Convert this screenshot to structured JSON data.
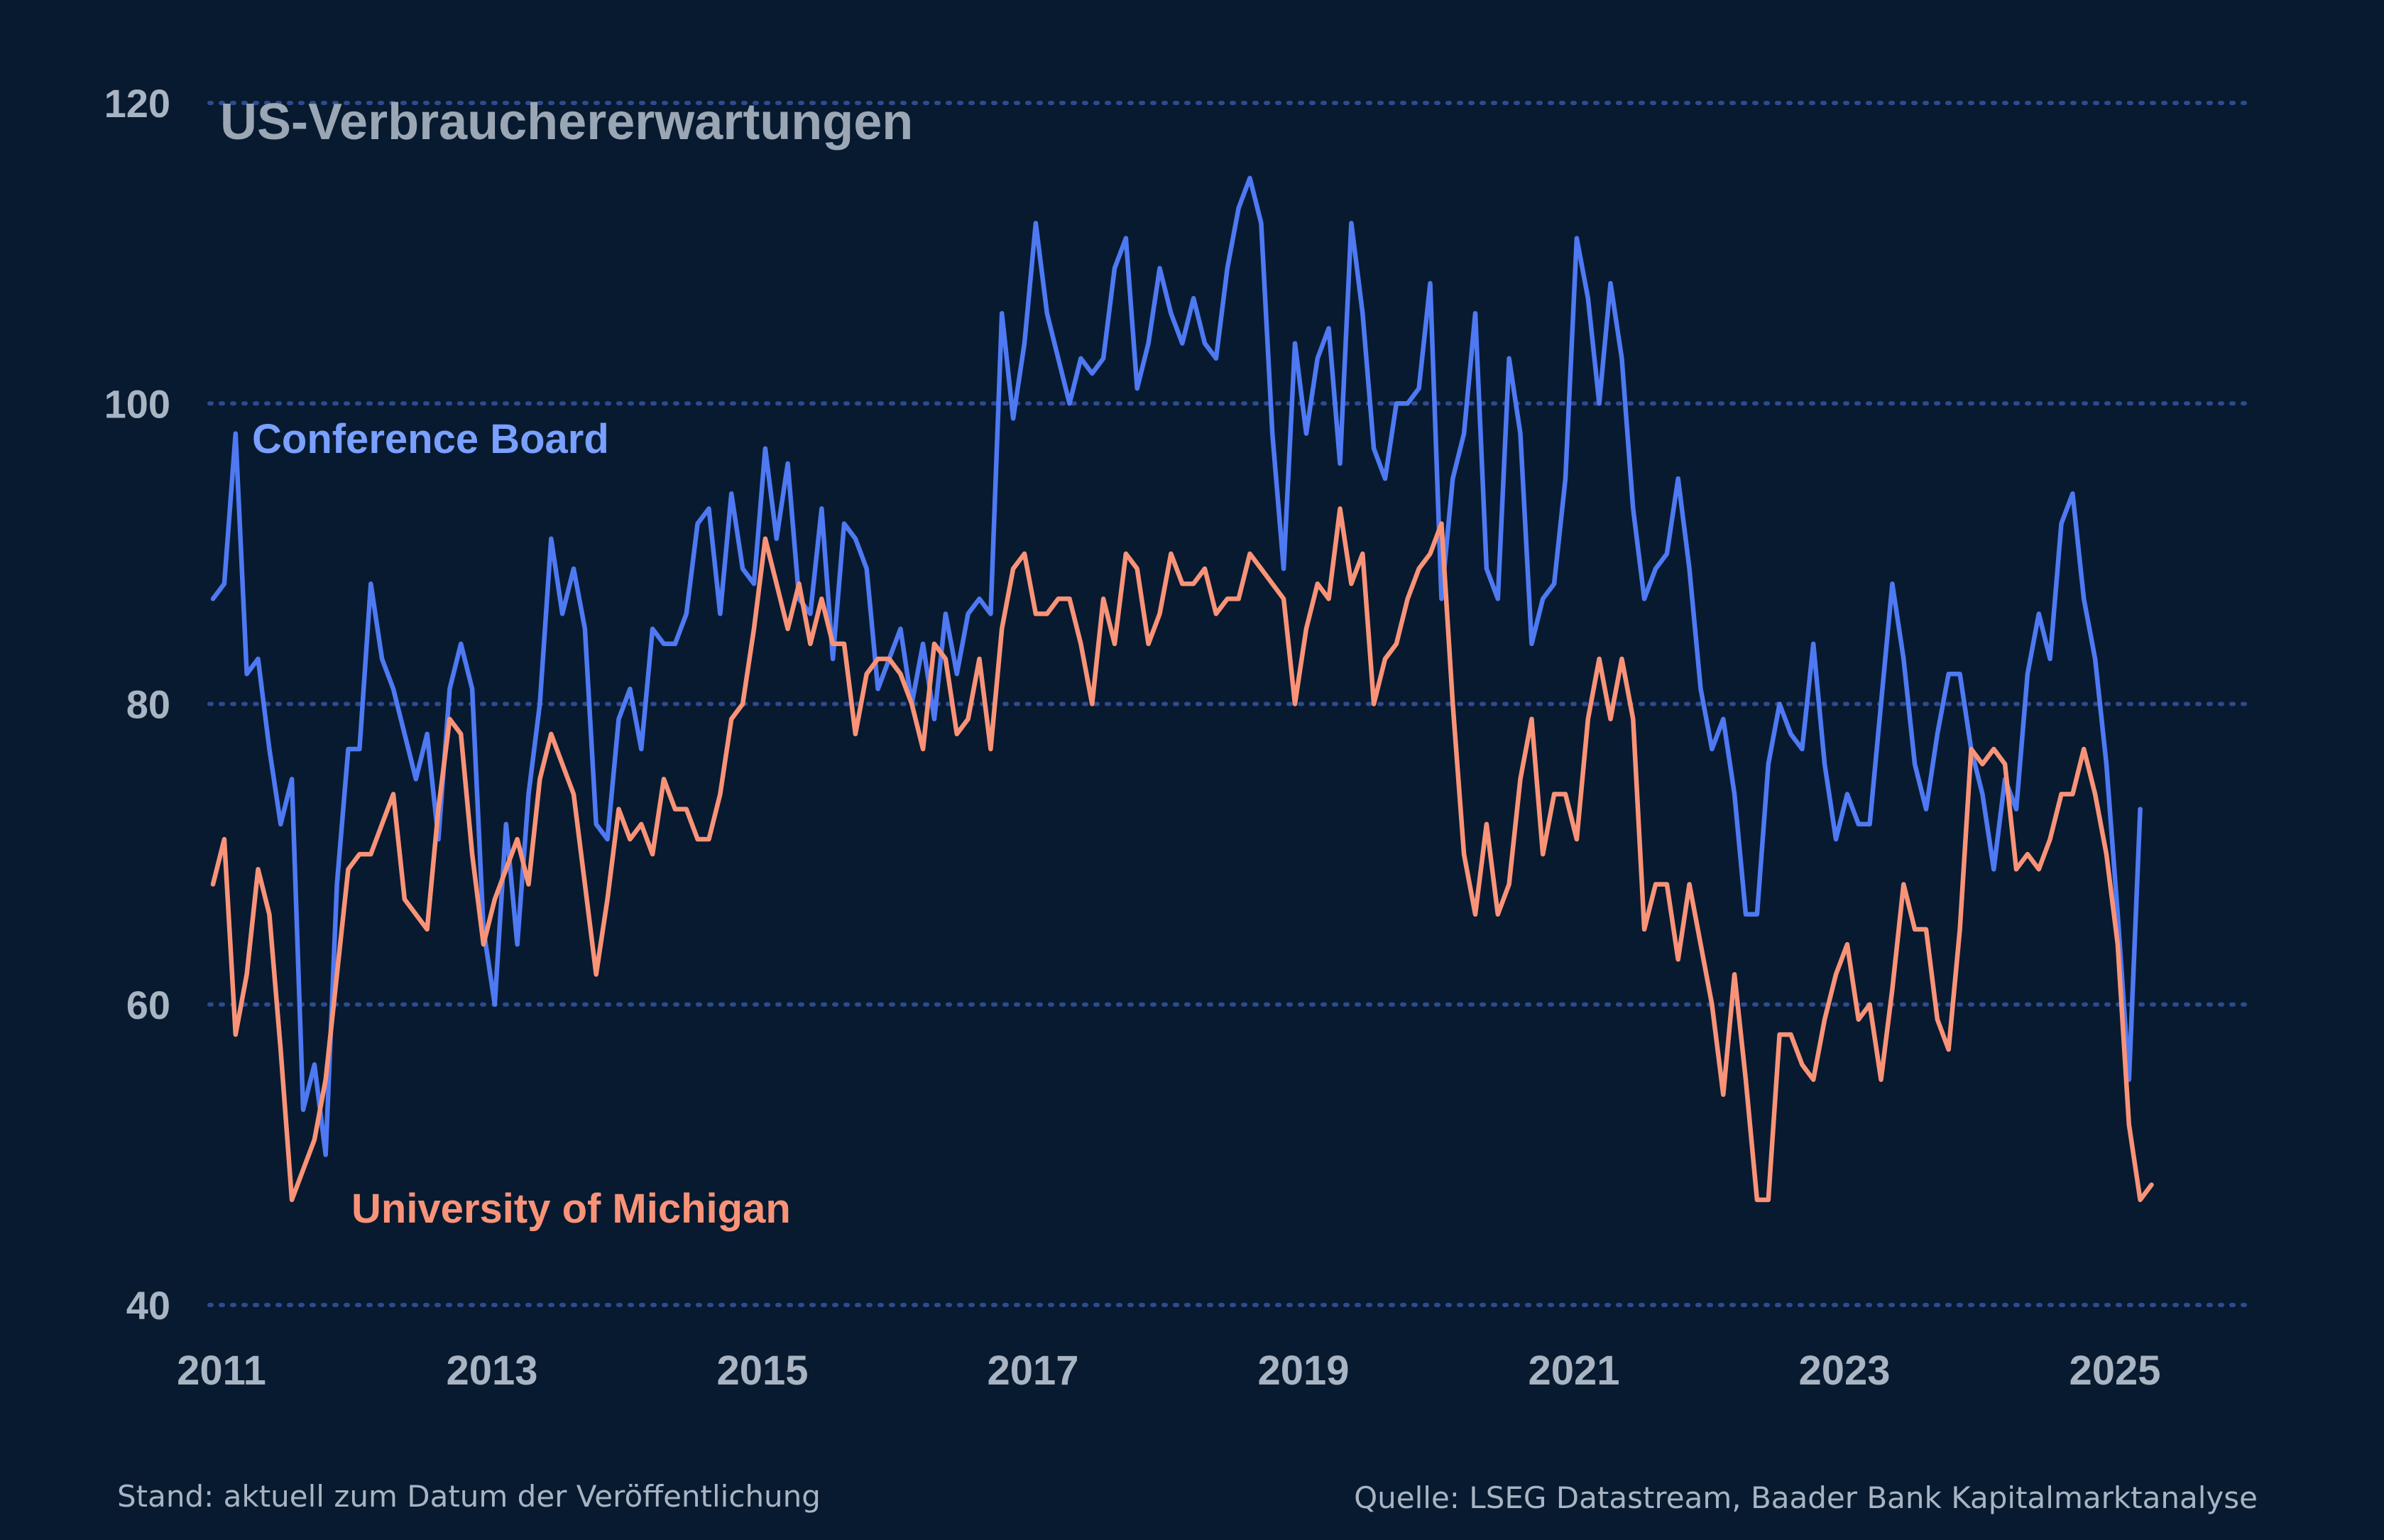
{
  "colors": {
    "background": "#071a30",
    "grid": "#2e4b8f",
    "text": "#a9b4c2",
    "conference_board": "#4e79f2",
    "michigan": "#f99378"
  },
  "footer": {
    "left": "Stand: aktuell zum Datum der Veröffentlichung",
    "right": "Quelle: LSEG Datastream, Baader Bank Kapitalmarktanalyse"
  },
  "chart_data": {
    "type": "line",
    "title": "US-Verbrauchererwartungen",
    "xlabel": "",
    "ylabel": "",
    "grid": true,
    "ylim": [
      40,
      120
    ],
    "yticks": [
      "40",
      "60",
      "80",
      "100",
      "120"
    ],
    "xticks": [
      "2011",
      "2013",
      "2015",
      "2017",
      "2019",
      "2021",
      "2023",
      "2025"
    ],
    "x_start": "2011-01",
    "x_frequency": "monthly",
    "series": [
      {
        "name": "Conference Board",
        "color": "#4e79f2",
        "values": [
          87,
          88,
          98,
          82,
          83,
          77,
          72,
          75,
          53,
          56,
          50,
          68,
          77,
          77,
          88,
          83,
          81,
          78,
          75,
          78,
          71,
          81,
          84,
          81,
          65,
          60,
          72,
          64,
          74,
          80,
          91,
          86,
          89,
          85,
          72,
          71,
          79,
          81,
          77,
          85,
          84,
          84,
          86,
          92,
          93,
          86,
          94,
          89,
          88,
          97,
          91,
          96,
          87,
          86,
          93,
          83,
          92,
          91,
          89,
          81,
          83,
          85,
          80,
          84,
          79,
          86,
          82,
          86,
          87,
          86,
          106,
          99,
          104,
          112,
          106,
          103,
          100,
          103,
          102,
          103,
          109,
          111,
          101,
          104,
          109,
          106,
          104,
          107,
          104,
          103,
          109,
          113,
          115,
          112,
          98,
          89,
          104,
          98,
          103,
          105,
          96,
          112,
          106,
          97,
          95,
          100,
          100,
          101,
          108,
          87,
          95,
          98,
          106,
          89,
          87,
          103,
          98,
          84,
          87,
          88,
          95,
          111,
          107,
          100,
          108,
          103,
          93,
          87,
          89,
          90,
          95,
          89,
          81,
          77,
          79,
          74,
          66,
          66,
          76,
          80,
          78,
          77,
          84,
          76,
          71,
          74,
          72,
          72,
          80,
          88,
          83,
          76,
          73,
          78,
          82,
          82,
          77,
          74,
          69,
          75,
          73,
          82,
          86,
          83,
          92,
          94,
          87,
          83,
          76,
          66,
          55,
          73
        ]
      },
      {
        "name": "University of Michigan",
        "color": "#f99378",
        "values": [
          68,
          71,
          58,
          62,
          69,
          66,
          57,
          47,
          49,
          51,
          55,
          62,
          69,
          70,
          70,
          72,
          74,
          67,
          66,
          65,
          73,
          79,
          78,
          70,
          64,
          67,
          69,
          71,
          68,
          75,
          78,
          76,
          74,
          68,
          62,
          67,
          73,
          71,
          72,
          70,
          75,
          73,
          73,
          71,
          71,
          74,
          79,
          80,
          85,
          91,
          88,
          85,
          88,
          84,
          87,
          84,
          84,
          78,
          82,
          83,
          83,
          82,
          80,
          77,
          84,
          83,
          78,
          79,
          83,
          77,
          85,
          89,
          90,
          86,
          86,
          87,
          87,
          84,
          80,
          87,
          84,
          90,
          89,
          84,
          86,
          90,
          88,
          88,
          89,
          86,
          87,
          87,
          90,
          89,
          88,
          87,
          80,
          85,
          88,
          87,
          93,
          88,
          90,
          80,
          83,
          84,
          87,
          89,
          90,
          92,
          80,
          70,
          66,
          72,
          66,
          68,
          75,
          79,
          70,
          74,
          74,
          71,
          79,
          83,
          79,
          83,
          79,
          65,
          68,
          68,
          63,
          68,
          64,
          60,
          54,
          62,
          55,
          47,
          47,
          58,
          58,
          56,
          55,
          59,
          62,
          64,
          59,
          60,
          55,
          61,
          68,
          65,
          65,
          59,
          57,
          65,
          77,
          76,
          77,
          76,
          69,
          70,
          69,
          71,
          74,
          74,
          77,
          74,
          70,
          64,
          52,
          47,
          48
        ]
      }
    ],
    "annotations": [
      {
        "text": "Conference Board",
        "series": "Conference Board"
      },
      {
        "text": "University of Michigan",
        "series": "University of Michigan"
      }
    ]
  }
}
